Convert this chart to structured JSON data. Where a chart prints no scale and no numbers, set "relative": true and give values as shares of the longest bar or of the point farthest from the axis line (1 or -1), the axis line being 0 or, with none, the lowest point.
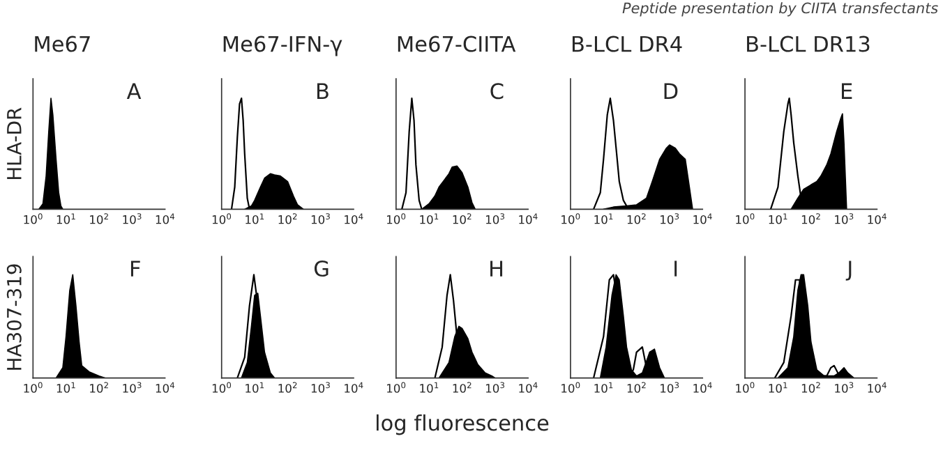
{
  "chart_data": [
    {
      "type": "area",
      "title": "Me67",
      "ylabel": "HLA-DR",
      "annotations": [
        "A"
      ],
      "relative": true,
      "log": "x",
      "xlim": [
        1,
        10000
      ],
      "xticks": [
        {
          "value": 1,
          "label": "10$^{0}$"
        },
        {
          "value": 10,
          "label": "10$^{1}$"
        },
        {
          "value": 100,
          "label": "10$^{2}$"
        },
        {
          "value": 1000,
          "label": "10$^{3}$"
        },
        {
          "value": 10000,
          "label": "10$^{4}$"
        }
      ],
      "tick_labels": "x",
      "series": [
        {
          "color": "#000000",
          "x": [
            1.5,
            2,
            2.5,
            3,
            3.5,
            4,
            5,
            6,
            7,
            8
          ],
          "values": [
            0,
            0.05,
            0.3,
            0.7,
            1,
            0.85,
            0.45,
            0.15,
            0.03,
            0
          ]
        }
      ]
    },
    {
      "type": "area",
      "title": "Me67-IFN-γ",
      "annotations": [
        "B"
      ],
      "relative": true,
      "log": "x",
      "xlim": [
        1,
        10000
      ],
      "xticks": [
        {
          "value": 1,
          "label": "10$^{0}$"
        },
        {
          "value": 10,
          "label": "10$^{1}$"
        },
        {
          "value": 100,
          "label": "10$^{2}$"
        },
        {
          "value": 1000,
          "label": "10$^{3}$"
        },
        {
          "value": 10000,
          "label": "10$^{4}$"
        }
      ],
      "tick_labels": "x",
      "series": [
        {
          "color": "#000000",
          "x": [
            5,
            8,
            10,
            15,
            20,
            30,
            40,
            60,
            100,
            150,
            200,
            300
          ],
          "values": [
            0,
            0.03,
            0.08,
            0.2,
            0.28,
            0.32,
            0.31,
            0.3,
            0.25,
            0.12,
            0.04,
            0
          ]
        },
        {
          "type": "line",
          "color": "#000000",
          "x": [
            2,
            2.5,
            3,
            3.5,
            4,
            4.5,
            5,
            6,
            7
          ],
          "values": [
            0,
            0.2,
            0.65,
            0.95,
            1,
            0.8,
            0.5,
            0.1,
            0
          ]
        }
      ]
    },
    {
      "type": "area",
      "title": "Me67-CIITA",
      "annotations": [
        "C"
      ],
      "relative": true,
      "log": "x",
      "xlim": [
        1,
        10000
      ],
      "xticks": [
        {
          "value": 1,
          "label": "10$^{0}$"
        },
        {
          "value": 10,
          "label": "10$^{1}$"
        },
        {
          "value": 100,
          "label": "10$^{2}$"
        },
        {
          "value": 1000,
          "label": "10$^{3}$"
        },
        {
          "value": 10000,
          "label": "10$^{4}$"
        }
      ],
      "tick_labels": "x",
      "series": [
        {
          "color": "#000000",
          "x": [
            6,
            10,
            15,
            20,
            30,
            40,
            50,
            70,
            100,
            150,
            200,
            250
          ],
          "values": [
            0,
            0.05,
            0.12,
            0.2,
            0.27,
            0.32,
            0.38,
            0.39,
            0.33,
            0.2,
            0.06,
            0
          ]
        },
        {
          "type": "line",
          "color": "#000000",
          "x": [
            1.5,
            2,
            2.5,
            3,
            3.5,
            4,
            5,
            6
          ],
          "values": [
            0,
            0.15,
            0.7,
            1,
            0.8,
            0.4,
            0.08,
            0
          ]
        }
      ]
    },
    {
      "type": "area",
      "title": "B-LCL DR4",
      "annotations": [
        "D"
      ],
      "relative": true,
      "log": "x",
      "xlim": [
        1,
        10000
      ],
      "xticks": [
        {
          "value": 1,
          "label": "10$^{0}$"
        },
        {
          "value": 10,
          "label": "10$^{1}$"
        },
        {
          "value": 100,
          "label": "10$^{2}$"
        },
        {
          "value": 1000,
          "label": "10$^{3}$"
        },
        {
          "value": 10000,
          "label": "10$^{4}$"
        }
      ],
      "tick_labels": "x",
      "series": [
        {
          "color": "#000000",
          "x": [
            10,
            20,
            50,
            100,
            200,
            300,
            500,
            800,
            1000,
            1500,
            2000,
            3000,
            4000,
            5000
          ],
          "values": [
            0,
            0.02,
            0.03,
            0.04,
            0.1,
            0.25,
            0.45,
            0.55,
            0.58,
            0.55,
            0.5,
            0.45,
            0.2,
            0
          ]
        },
        {
          "type": "line",
          "color": "#000000",
          "x": [
            5,
            8,
            10,
            13,
            16,
            20,
            25,
            30,
            40,
            50,
            60
          ],
          "values": [
            0,
            0.15,
            0.45,
            0.85,
            1,
            0.8,
            0.5,
            0.25,
            0.08,
            0.03,
            0
          ]
        }
      ]
    },
    {
      "type": "area",
      "title": "B-LCL DR13",
      "annotations": [
        "E",
        "Peptide presentation by CIITA transfectants"
      ],
      "relative": true,
      "log": "x",
      "xlim": [
        1,
        10000
      ],
      "xticks": [
        {
          "value": 1,
          "label": "10$^{0}$"
        },
        {
          "value": 10,
          "label": "10$^{1}$"
        },
        {
          "value": 100,
          "label": "10$^{2}$"
        },
        {
          "value": 1000,
          "label": "10$^{3}$"
        },
        {
          "value": 10000,
          "label": "10$^{4}$"
        }
      ],
      "tick_labels": "x",
      "series": [
        {
          "color": "#000000",
          "x": [
            25,
            40,
            60,
            100,
            150,
            200,
            300,
            400,
            600,
            800,
            900,
            1000,
            1200
          ],
          "values": [
            0,
            0.1,
            0.18,
            0.22,
            0.25,
            0.3,
            0.4,
            0.5,
            0.7,
            0.82,
            0.86,
            0.6,
            0
          ]
        },
        {
          "type": "line",
          "color": "#000000",
          "x": [
            6,
            10,
            15,
            20,
            22,
            25,
            30,
            40,
            50,
            70
          ],
          "values": [
            0,
            0.2,
            0.7,
            0.95,
            1,
            0.85,
            0.6,
            0.3,
            0.1,
            0
          ]
        }
      ]
    },
    {
      "type": "area",
      "ylabel": "HA307-319",
      "annotations": [
        "F"
      ],
      "relative": true,
      "log": "x",
      "xlim": [
        1,
        10000
      ],
      "xticks": [
        {
          "value": 1,
          "label": "10$^{0}$"
        },
        {
          "value": 10,
          "label": "10$^{1}$"
        },
        {
          "value": 100,
          "label": "10$^{2}$"
        },
        {
          "value": 1000,
          "label": "10$^{3}$"
        },
        {
          "value": 10000,
          "label": "10$^{4}$"
        }
      ],
      "tick_labels": "x",
      "series": [
        {
          "color": "#000000",
          "x": [
            5,
            8,
            10,
            13,
            16,
            20,
            25,
            30,
            50,
            100,
            150
          ],
          "values": [
            0,
            0.1,
            0.4,
            0.85,
            1,
            0.7,
            0.35,
            0.12,
            0.06,
            0.02,
            0
          ]
        }
      ]
    },
    {
      "type": "area",
      "annotations": [
        "G"
      ],
      "relative": true,
      "log": "x",
      "xlim": [
        1,
        10000
      ],
      "xticks": [
        {
          "value": 1,
          "label": "10$^{0}$"
        },
        {
          "value": 10,
          "label": "10$^{1}$"
        },
        {
          "value": 100,
          "label": "10$^{2}$"
        },
        {
          "value": 1000,
          "label": "10$^{3}$"
        },
        {
          "value": 10000,
          "label": "10$^{4}$"
        }
      ],
      "tick_labels": "x",
      "series": [
        {
          "color": "#000000",
          "x": [
            4,
            6,
            8,
            10,
            12.5,
            15,
            20,
            30,
            40
          ],
          "values": [
            0,
            0.15,
            0.5,
            0.8,
            0.82,
            0.6,
            0.25,
            0.05,
            0
          ]
        },
        {
          "type": "line",
          "color": "#000000",
          "x": [
            3,
            5,
            7,
            9.5,
            12,
            15,
            20,
            30
          ],
          "values": [
            0,
            0.2,
            0.7,
            1,
            0.75,
            0.35,
            0.08,
            0
          ]
        }
      ]
    },
    {
      "type": "area",
      "xlabel": "log fluorescence",
      "annotations": [
        "H"
      ],
      "relative": true,
      "log": "x",
      "xlim": [
        1,
        10000
      ],
      "xticks": [
        {
          "value": 1,
          "label": "10$^{0}$"
        },
        {
          "value": 10,
          "label": "10$^{1}$"
        },
        {
          "value": 100,
          "label": "10$^{2}$"
        },
        {
          "value": 1000,
          "label": "10$^{3}$"
        },
        {
          "value": 10000,
          "label": "10$^{4}$"
        }
      ],
      "tick_labels": "x",
      "series": [
        {
          "color": "#000000",
          "x": [
            20,
            40,
            60,
            80,
            100,
            150,
            200,
            300,
            500,
            800,
            1000
          ],
          "values": [
            0,
            0.15,
            0.4,
            0.5,
            0.48,
            0.38,
            0.25,
            0.13,
            0.05,
            0.02,
            0
          ]
        },
        {
          "type": "line",
          "color": "#000000",
          "x": [
            15,
            25,
            35,
            44,
            55,
            70,
            100,
            150
          ],
          "values": [
            0,
            0.3,
            0.8,
            1,
            0.75,
            0.4,
            0.1,
            0
          ]
        }
      ]
    },
    {
      "type": "area",
      "annotations": [
        "I"
      ],
      "relative": true,
      "log": "x",
      "xlim": [
        1,
        10000
      ],
      "xticks": [
        {
          "value": 1,
          "label": "10$^{0}$"
        },
        {
          "value": 10,
          "label": "10$^{1}$"
        },
        {
          "value": 100,
          "label": "10$^{2}$"
        },
        {
          "value": 1000,
          "label": "10$^{3}$"
        },
        {
          "value": 10000,
          "label": "10$^{4}$"
        }
      ],
      "tick_labels": "x",
      "series": [
        {
          "color": "#000000",
          "x": [
            8,
            12,
            18,
            24,
            30,
            40,
            50,
            70,
            100,
            150,
            250,
            350,
            500,
            700
          ],
          "values": [
            0,
            0.3,
            0.8,
            1,
            0.95,
            0.6,
            0.3,
            0.08,
            0.02,
            0.05,
            0.25,
            0.28,
            0.1,
            0
          ]
        },
        {
          "type": "line",
          "color": "#000000",
          "x": [
            5,
            10,
            15,
            20,
            25,
            30,
            40,
            60,
            80,
            100,
            150,
            200,
            300
          ],
          "values": [
            0,
            0.4,
            0.95,
            1,
            0.8,
            0.5,
            0.15,
            0.02,
            0.08,
            0.25,
            0.3,
            0.1,
            0
          ]
        }
      ]
    },
    {
      "type": "area",
      "annotations": [
        "J"
      ],
      "relative": true,
      "log": "x",
      "xlim": [
        1,
        10000
      ],
      "xticks": [
        {
          "value": 1,
          "label": "10$^{0}$"
        },
        {
          "value": 10,
          "label": "10$^{1}$"
        },
        {
          "value": 100,
          "label": "10$^{2}$"
        },
        {
          "value": 1000,
          "label": "10$^{3}$"
        },
        {
          "value": 10000,
          "label": "10$^{4}$"
        }
      ],
      "tick_labels": "x",
      "series": [
        {
          "color": "#000000",
          "x": [
            10,
            20,
            30,
            40,
            50,
            60,
            80,
            100,
            150,
            250,
            500,
            700,
            1000,
            1300,
            2000
          ],
          "values": [
            0,
            0.1,
            0.4,
            0.85,
            1,
            1,
            0.7,
            0.35,
            0.08,
            0.02,
            0.02,
            0.05,
            0.1,
            0.05,
            0
          ]
        },
        {
          "type": "line",
          "color": "#000000",
          "x": [
            8,
            15,
            25,
            34,
            45,
            60,
            80,
            120,
            200,
            300,
            400,
            500,
            700,
            1000
          ],
          "values": [
            0,
            0.15,
            0.6,
            0.95,
            0.95,
            0.6,
            0.2,
            0.05,
            0.02,
            0.02,
            0.1,
            0.12,
            0.03,
            0
          ]
        }
      ]
    }
  ]
}
